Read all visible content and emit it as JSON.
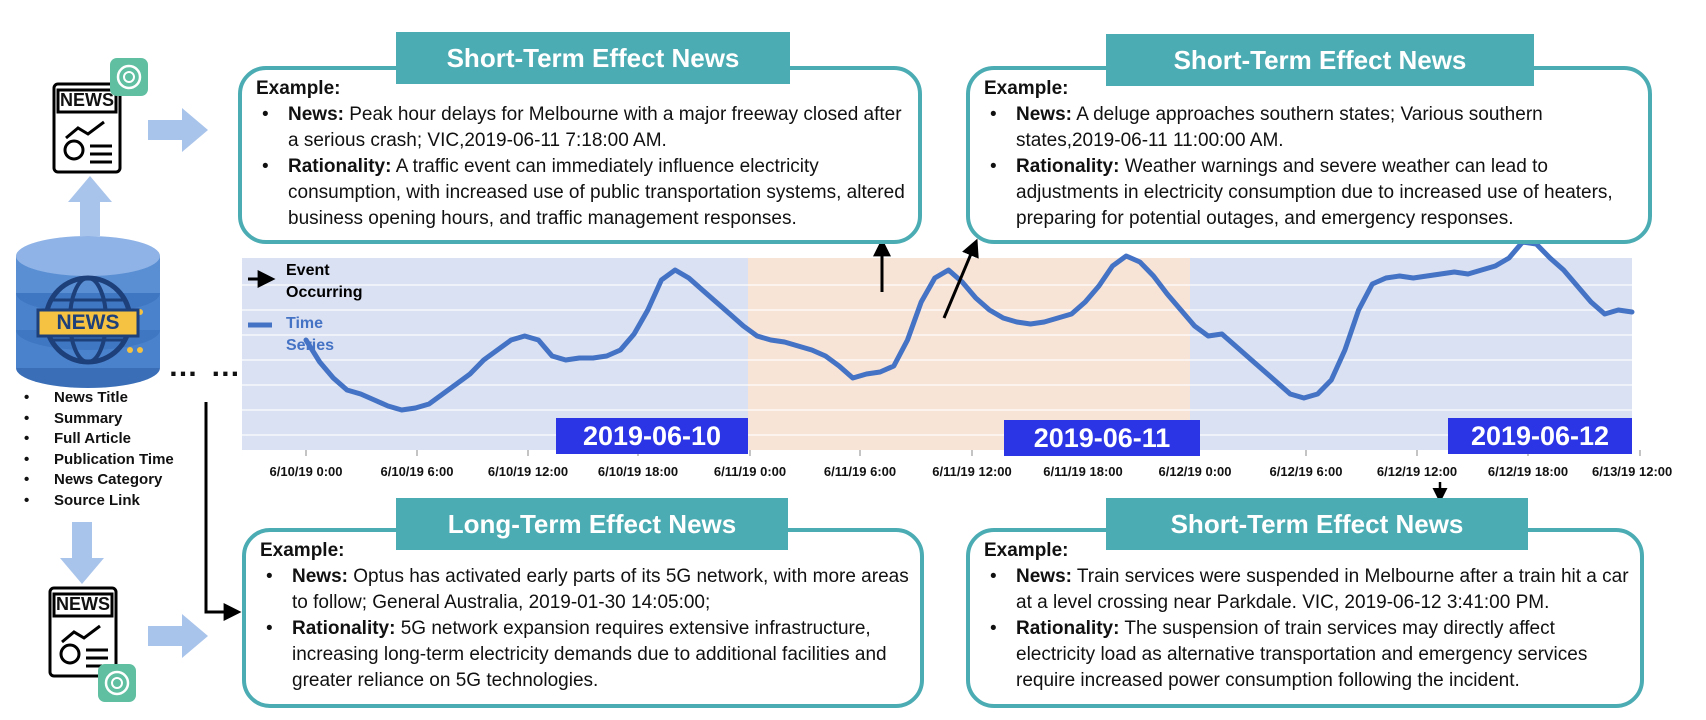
{
  "cards": {
    "top_left": {
      "title": "Short-Term Effect News",
      "example_label": "Example:",
      "news_label": "News:",
      "news_text": "Peak hour delays for Melbourne with a major freeway closed after a serious crash; VIC,2019-06-11   7:18:00  AM.",
      "rationality_label": "Rationality:",
      "rationality_text": "A traffic event can immediately influence electricity consumption, with increased use of public transportation systems, altered business opening hours, and traffic management responses."
    },
    "top_right": {
      "title": "Short-Term Effect News",
      "example_label": "Example:",
      "news_label": "News:",
      "news_text": "A deluge approaches southern states; Various southern states,2019-06-11  11:00:00 AM.",
      "rationality_label": "Rationality:",
      "rationality_text": "Weather warnings and severe weather can lead to adjustments in electricity consumption due to increased use of heaters, preparing for potential outages, and emergency responses."
    },
    "bottom_left": {
      "title": "Long-Term Effect News",
      "example_label": "Example:",
      "news_label": "News:",
      "news_text": "Optus has activated early parts of its 5G network, with more areas to follow; General Australia, 2019-01-30 14:05:00;",
      "rationality_label": "Rationality:",
      "rationality_text": "5G network expansion requires extensive infrastructure, increasing long-term electricity demands due to additional facilities and greater reliance on 5G technologies."
    },
    "bottom_right": {
      "title": "Short-Term Effect News",
      "example_label": "Example:",
      "news_label": "News:",
      "news_text": "Train services were suspended in Melbourne after a train hit a car at a level crossing near Parkdale. VIC, 2019-06-12  3:41:00 PM.",
      "rationality_label": "Rationality:",
      "rationality_text": "The suspension of train services may directly affect electricity load as alternative transportation and emergency services require increased power consumption following the incident."
    }
  },
  "database": {
    "label": "NEWS",
    "fields": [
      "News Title",
      "Summary",
      "Full Article",
      "Publication Time",
      "News Category",
      "Source Link"
    ],
    "ellipsis": "… …"
  },
  "news_icon_label": "NEWS",
  "legend": {
    "event_line1": "Event",
    "event_line2": "Occurring",
    "series_line1": "Time",
    "series_line2": "Series"
  },
  "date_badges": [
    "2019-06-10",
    "2019-06-11",
    "2019-06-12"
  ],
  "colors": {
    "teal": "#4bacb3",
    "series": "#4472c4",
    "date_badge": "#2b35e6",
    "bg_blue": "#dae1f2",
    "bg_orange": "#f8e3d7",
    "arrow_light": "#a9c4ea"
  },
  "icons": [
    "news-document-icon",
    "chatgpt-icon",
    "database-icon",
    "globe-icon"
  ],
  "chart_data": {
    "type": "line",
    "x_tick_labels": [
      "6/10/19 0:00",
      "6/10/19 6:00",
      "6/10/19 12:00",
      "6/10/19 18:00",
      "6/11/19 0:00",
      "6/11/19 6:00",
      "6/11/19 12:00",
      "6/11/19 18:00",
      "6/12/19 0:00",
      "6/12/19 6:00",
      "6/12/19 12:00",
      "6/12/19 18:00",
      "6/13/19 12:00"
    ],
    "series": [
      {
        "values": [
          55,
          44,
          36,
          30,
          28,
          25,
          22,
          20,
          21,
          23,
          28,
          33,
          38,
          45,
          50,
          55,
          57,
          55,
          47,
          45,
          46,
          46,
          47,
          50,
          58,
          70,
          85,
          90,
          86,
          80,
          74,
          68,
          62,
          57,
          55,
          54,
          52,
          50,
          47,
          42,
          36,
          38,
          39,
          42,
          55,
          74,
          86,
          90,
          84,
          76,
          70,
          66,
          64,
          63,
          64,
          66,
          68,
          74,
          82,
          92,
          97,
          94,
          87,
          78,
          70,
          62,
          57,
          58,
          52,
          46,
          40,
          34,
          28,
          26,
          28,
          35,
          50,
          70,
          83,
          86,
          87,
          86,
          87,
          88,
          89,
          88,
          90,
          92,
          96,
          104,
          103,
          96,
          90,
          82,
          74,
          68,
          70,
          69
        ]
      }
    ],
    "shaded_regions": [
      {
        "label": "2019-06-10"
      },
      {
        "label": "2019-06-11"
      },
      {
        "label": "2019-06-12"
      }
    ],
    "grid": true
  }
}
